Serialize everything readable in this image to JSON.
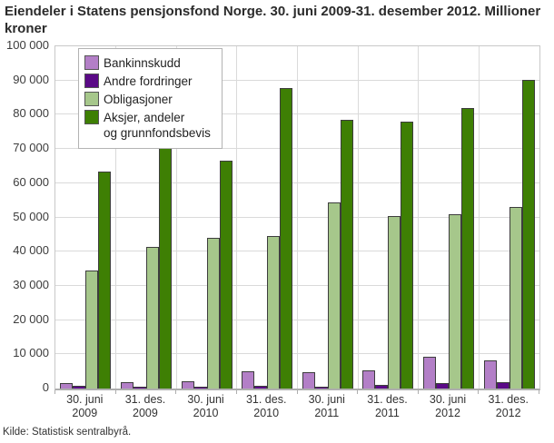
{
  "title": "Eiendeler i Statens pensjonsfond Norge. 30. juni 2009-31. desember 2012. Millioner kroner",
  "source": "Kilde: Statistisk sentralbyrå.",
  "chart_data": {
    "type": "bar",
    "title": "Eiendeler i Statens pensjonsfond Norge. 30. juni 2009-31. desember 2012. Millioner kroner",
    "ylabel": "Millioner kroner",
    "xlabel": "",
    "categories": [
      "30. juni\n2009",
      "31. des.\n2009",
      "30. juni\n2010",
      "31. des.\n2010",
      "30. juni\n2011",
      "31. des.\n2011",
      "30. juni\n2012",
      "31. des.\n2012"
    ],
    "series": [
      {
        "name": "Bankinnskudd",
        "color": "#b37fc7",
        "values": [
          1500,
          1800,
          2100,
          5100,
          4900,
          5300,
          9400,
          8300
        ]
      },
      {
        "name": "Andre fordringer",
        "color": "#5b0a87",
        "values": [
          900,
          600,
          500,
          700,
          500,
          1100,
          1500,
          1800
        ]
      },
      {
        "name": "Obligasjoner",
        "color": "#a6c78b",
        "values": [
          34500,
          41500,
          44000,
          44500,
          54500,
          50500,
          51000,
          53000
        ]
      },
      {
        "name": "Aksjer, andeler\nog grunnfondsbevis",
        "color": "#3e7f04",
        "values": [
          63500,
          73000,
          66500,
          87700,
          78400,
          78000,
          82000,
          90300
        ]
      }
    ],
    "ylim": [
      0,
      100000
    ],
    "ytick_step": 10000,
    "ytick_labels": [
      "0",
      "10 000",
      "20 000",
      "30 000",
      "40 000",
      "50 000",
      "60 000",
      "70 000",
      "80 000",
      "90 000",
      "100 000"
    ],
    "grid": true,
    "legend_position": "top-left-inside",
    "bar_border_color": "#3d3d3d"
  }
}
